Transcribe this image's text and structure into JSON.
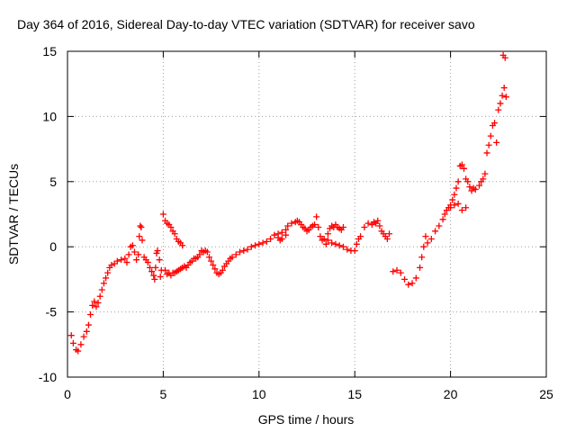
{
  "chart_data": {
    "type": "scatter",
    "title": "Day 364 of 2016, Sidereal Day-to-day VTEC variation (SDTVAR) for receiver savo",
    "xlabel": "GPS time / hours",
    "ylabel": "SDTVAR / TECUs",
    "xlim": [
      0,
      25
    ],
    "ylim": [
      -10,
      15
    ],
    "xticks": [
      0,
      5,
      10,
      15,
      20,
      25
    ],
    "yticks": [
      -10,
      -5,
      0,
      5,
      10,
      15
    ],
    "xtick_labels": [
      "0",
      "5",
      "10",
      "15",
      "20",
      "25"
    ],
    "ytick_labels": [
      "-10",
      "-5",
      "0",
      "5",
      "10",
      "15"
    ],
    "grid": true,
    "marker": "+",
    "series_color": "#ff0000",
    "series": [
      {
        "name": "SDTVAR",
        "points": [
          [
            0.2,
            -6.8
          ],
          [
            0.3,
            -7.4
          ],
          [
            0.45,
            -7.9
          ],
          [
            0.55,
            -8.0
          ],
          [
            0.7,
            -7.5
          ],
          [
            0.85,
            -6.9
          ],
          [
            1.0,
            -6.5
          ],
          [
            1.1,
            -6.0
          ],
          [
            1.2,
            -5.2
          ],
          [
            1.3,
            -4.5
          ],
          [
            1.4,
            -4.2
          ],
          [
            1.5,
            -4.6
          ],
          [
            1.6,
            -4.3
          ],
          [
            1.7,
            -3.8
          ],
          [
            1.8,
            -3.3
          ],
          [
            1.9,
            -2.8
          ],
          [
            2.0,
            -2.4
          ],
          [
            2.1,
            -2.0
          ],
          [
            2.2,
            -1.6
          ],
          [
            2.3,
            -1.4
          ],
          [
            2.45,
            -1.3
          ],
          [
            2.6,
            -1.1
          ],
          [
            2.8,
            -1.0
          ],
          [
            3.0,
            -0.9
          ],
          [
            3.1,
            -1.2
          ],
          [
            3.2,
            -0.6
          ],
          [
            3.3,
            0.0
          ],
          [
            3.4,
            0.1
          ],
          [
            3.5,
            -0.4
          ],
          [
            3.6,
            -1.0
          ],
          [
            3.7,
            -0.6
          ],
          [
            3.75,
            0.8
          ],
          [
            3.8,
            1.6
          ],
          [
            3.85,
            1.5
          ],
          [
            3.9,
            0.5
          ],
          [
            4.0,
            -0.8
          ],
          [
            4.1,
            -1.0
          ],
          [
            4.2,
            -1.2
          ],
          [
            4.3,
            -1.6
          ],
          [
            4.4,
            -1.9
          ],
          [
            4.5,
            -2.2
          ],
          [
            4.55,
            -2.5
          ],
          [
            4.6,
            -1.6
          ],
          [
            4.65,
            -0.5
          ],
          [
            4.7,
            -0.3
          ],
          [
            4.8,
            -1.0
          ],
          [
            4.85,
            -2.3
          ],
          [
            4.9,
            -1.8
          ],
          [
            5.0,
            2.5
          ],
          [
            5.1,
            2.0
          ],
          [
            5.2,
            1.8
          ],
          [
            5.3,
            1.7
          ],
          [
            5.4,
            1.5
          ],
          [
            5.5,
            1.2
          ],
          [
            5.6,
            1.0
          ],
          [
            5.7,
            0.6
          ],
          [
            5.8,
            0.4
          ],
          [
            5.9,
            0.3
          ],
          [
            6.0,
            0.1
          ],
          [
            5.1,
            -1.8
          ],
          [
            5.2,
            -2.1
          ],
          [
            5.3,
            -2.0
          ],
          [
            5.4,
            -2.2
          ],
          [
            5.5,
            -2.0
          ],
          [
            5.6,
            -2.0
          ],
          [
            5.7,
            -1.9
          ],
          [
            5.8,
            -1.8
          ],
          [
            5.9,
            -1.7
          ],
          [
            6.0,
            -1.6
          ],
          [
            6.1,
            -1.5
          ],
          [
            6.2,
            -1.6
          ],
          [
            6.3,
            -1.4
          ],
          [
            6.4,
            -1.2
          ],
          [
            6.5,
            -1.1
          ],
          [
            6.6,
            -0.9
          ],
          [
            6.7,
            -0.9
          ],
          [
            6.8,
            -0.8
          ],
          [
            6.9,
            -0.6
          ],
          [
            7.0,
            -0.3
          ],
          [
            7.1,
            -0.4
          ],
          [
            7.2,
            -0.3
          ],
          [
            7.3,
            -0.4
          ],
          [
            7.4,
            -0.8
          ],
          [
            7.5,
            -1.1
          ],
          [
            7.6,
            -1.4
          ],
          [
            7.7,
            -1.7
          ],
          [
            7.8,
            -2.0
          ],
          [
            7.9,
            -2.1
          ],
          [
            8.0,
            -2.0
          ],
          [
            8.1,
            -1.8
          ],
          [
            8.2,
            -1.5
          ],
          [
            8.3,
            -1.3
          ],
          [
            8.4,
            -1.1
          ],
          [
            8.5,
            -0.9
          ],
          [
            8.6,
            -0.8
          ],
          [
            8.8,
            -0.6
          ],
          [
            9.0,
            -0.4
          ],
          [
            9.2,
            -0.3
          ],
          [
            9.4,
            -0.2
          ],
          [
            9.6,
            0.0
          ],
          [
            9.8,
            0.1
          ],
          [
            10.0,
            0.2
          ],
          [
            10.2,
            0.3
          ],
          [
            10.4,
            0.4
          ],
          [
            10.6,
            0.6
          ],
          [
            10.8,
            0.9
          ],
          [
            11.0,
            1.0
          ],
          [
            11.2,
            1.1
          ],
          [
            11.4,
            1.3
          ],
          [
            11.5,
            1.6
          ],
          [
            11.7,
            1.8
          ],
          [
            11.9,
            1.9
          ],
          [
            12.0,
            2.0
          ],
          [
            12.1,
            1.9
          ],
          [
            12.2,
            1.7
          ],
          [
            12.3,
            1.5
          ],
          [
            11.0,
            0.7
          ],
          [
            11.1,
            0.5
          ],
          [
            11.2,
            0.6
          ],
          [
            11.4,
            0.9
          ],
          [
            12.4,
            1.4
          ],
          [
            12.5,
            1.2
          ],
          [
            12.6,
            1.3
          ],
          [
            12.7,
            1.5
          ],
          [
            12.8,
            1.6
          ],
          [
            12.9,
            1.7
          ],
          [
            13.0,
            2.3
          ],
          [
            13.1,
            1.5
          ],
          [
            13.2,
            0.8
          ],
          [
            13.3,
            0.5
          ],
          [
            13.4,
            0.6
          ],
          [
            13.5,
            0.2
          ],
          [
            13.6,
            1.0
          ],
          [
            13.7,
            1.4
          ],
          [
            13.8,
            1.6
          ],
          [
            13.9,
            1.5
          ],
          [
            14.0,
            1.7
          ],
          [
            14.1,
            1.5
          ],
          [
            14.2,
            1.4
          ],
          [
            14.3,
            1.3
          ],
          [
            14.4,
            1.5
          ],
          [
            13.6,
            0.5
          ],
          [
            13.8,
            0.3
          ],
          [
            14.0,
            0.2
          ],
          [
            14.2,
            0.1
          ],
          [
            14.4,
            0.0
          ],
          [
            14.6,
            -0.2
          ],
          [
            14.8,
            -0.3
          ],
          [
            15.0,
            -0.3
          ],
          [
            15.1,
            0.2
          ],
          [
            15.2,
            0.6
          ],
          [
            15.3,
            0.8
          ],
          [
            15.5,
            1.5
          ],
          [
            15.7,
            1.8
          ],
          [
            15.9,
            1.7
          ],
          [
            16.0,
            1.9
          ],
          [
            16.1,
            1.8
          ],
          [
            16.2,
            2.0
          ],
          [
            16.3,
            1.6
          ],
          [
            16.4,
            1.2
          ],
          [
            16.5,
            1.0
          ],
          [
            16.6,
            0.8
          ],
          [
            16.7,
            0.6
          ],
          [
            16.8,
            1.0
          ],
          [
            17.0,
            -1.9
          ],
          [
            17.2,
            -1.8
          ],
          [
            17.4,
            -2.0
          ],
          [
            17.6,
            -2.5
          ],
          [
            17.8,
            -2.9
          ],
          [
            18.0,
            -2.8
          ],
          [
            18.2,
            -2.4
          ],
          [
            18.4,
            -1.6
          ],
          [
            18.5,
            -0.8
          ],
          [
            18.6,
            0.0
          ],
          [
            18.7,
            0.8
          ],
          [
            18.8,
            0.3
          ],
          [
            19.0,
            0.6
          ],
          [
            19.2,
            1.2
          ],
          [
            19.4,
            1.6
          ],
          [
            19.6,
            2.1
          ],
          [
            19.7,
            2.5
          ],
          [
            19.8,
            2.8
          ],
          [
            19.9,
            3.0
          ],
          [
            20.0,
            3.2
          ],
          [
            20.1,
            3.6
          ],
          [
            20.2,
            4.0
          ],
          [
            20.3,
            4.5
          ],
          [
            20.4,
            5.0
          ],
          [
            20.5,
            6.2
          ],
          [
            20.6,
            6.3
          ],
          [
            20.7,
            6.0
          ],
          [
            20.8,
            5.2
          ],
          [
            20.9,
            5.0
          ],
          [
            21.0,
            4.6
          ],
          [
            21.1,
            4.3
          ],
          [
            21.2,
            4.5
          ],
          [
            21.3,
            4.4
          ],
          [
            21.5,
            4.7
          ],
          [
            21.6,
            5.0
          ],
          [
            21.7,
            5.2
          ],
          [
            21.8,
            5.6
          ],
          [
            21.9,
            7.2
          ],
          [
            22.0,
            7.8
          ],
          [
            22.1,
            8.5
          ],
          [
            22.2,
            9.3
          ],
          [
            22.3,
            9.5
          ],
          [
            22.4,
            8.0
          ],
          [
            22.5,
            10.5
          ],
          [
            22.6,
            11.0
          ],
          [
            22.7,
            11.6
          ],
          [
            22.8,
            12.2
          ],
          [
            22.9,
            11.5
          ],
          [
            22.75,
            14.7
          ],
          [
            22.85,
            14.5
          ],
          [
            20.0,
            3.0
          ],
          [
            20.2,
            3.2
          ],
          [
            20.4,
            3.3
          ],
          [
            20.6,
            2.8
          ],
          [
            20.8,
            3.0
          ]
        ]
      }
    ]
  }
}
